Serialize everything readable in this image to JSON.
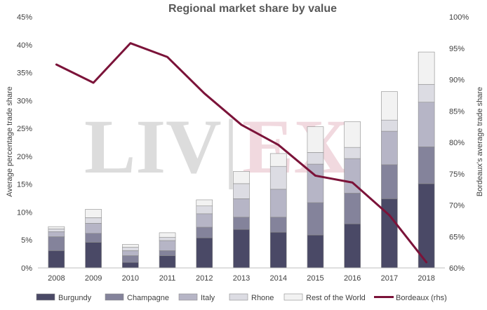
{
  "watermark": {
    "left": "LIV",
    "sep": "|",
    "right": "EX"
  },
  "chart_data": {
    "type": "bar",
    "stacked": true,
    "title": "Regional market share by value",
    "ylabel": "Average percentage trade share",
    "y2label": "Bordeaux's average trade share",
    "categories": [
      "2008",
      "2009",
      "2010",
      "2011",
      "2012",
      "2013",
      "2014",
      "2015",
      "2016",
      "2017",
      "2018"
    ],
    "ylim": [
      0,
      45
    ],
    "y2lim": [
      60,
      100
    ],
    "yticks": [
      "0%",
      "5%",
      "10%",
      "15%",
      "20%",
      "25%",
      "30%",
      "35%",
      "40%",
      "45%"
    ],
    "y2ticks": [
      "60%",
      "65%",
      "70%",
      "75%",
      "80%",
      "85%",
      "90%",
      "95%",
      "100%"
    ],
    "series": [
      {
        "name": "Burgundy",
        "color": "#4a4966",
        "values": [
          3.1,
          4.6,
          1.0,
          2.2,
          5.4,
          6.9,
          6.4,
          5.9,
          7.9,
          12.4,
          15.1
        ]
      },
      {
        "name": "Champagne",
        "color": "#84839b",
        "values": [
          2.5,
          1.6,
          1.2,
          0.9,
          1.9,
          2.2,
          2.7,
          5.8,
          5.5,
          6.1,
          6.6
        ]
      },
      {
        "name": "Italy",
        "color": "#b6b5c6",
        "values": [
          0.9,
          1.8,
          0.9,
          1.8,
          2.4,
          3.3,
          5.0,
          6.9,
          6.2,
          6.0,
          8.0
        ]
      },
      {
        "name": "Rhone",
        "color": "#dcdce3",
        "values": [
          0.5,
          1.0,
          0.6,
          0.6,
          1.4,
          2.7,
          4.1,
          2.1,
          2.0,
          2.0,
          3.2
        ]
      },
      {
        "name": "Rest of the World",
        "color": "#f2f2f2",
        "values": [
          0.4,
          1.5,
          0.5,
          0.8,
          1.1,
          2.2,
          2.3,
          4.6,
          4.6,
          5.1,
          5.8
        ]
      }
    ],
    "line": {
      "name": "Bordeaux (rhs)",
      "color": "#7b1339",
      "axis": "right",
      "values": [
        92.4,
        89.5,
        95.8,
        93.6,
        87.8,
        82.8,
        79.6,
        74.7,
        73.6,
        68.4,
        60.9
      ]
    },
    "grid": false,
    "legend": "bottom"
  }
}
